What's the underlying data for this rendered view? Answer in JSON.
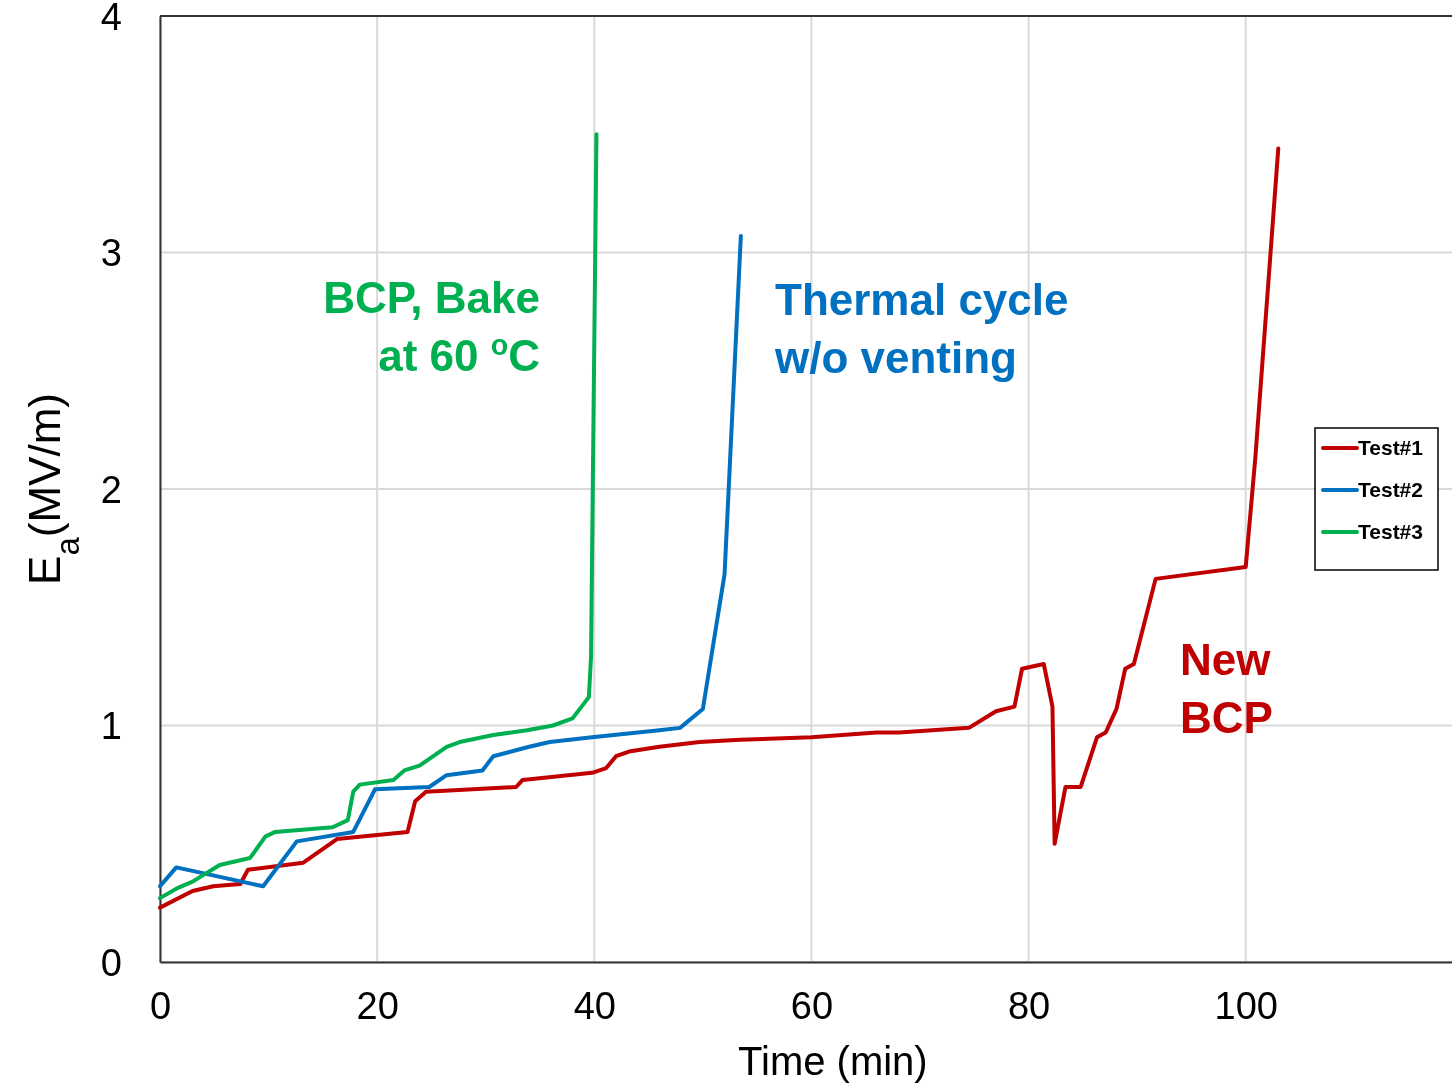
{
  "chart_data": {
    "type": "line",
    "xlabel": "Time (min)",
    "ylabel": "E$_{a}$(MV/m)",
    "xlim": [
      0,
      119
    ],
    "xticks": [
      0,
      20,
      40,
      60,
      80,
      100
    ],
    "ylim": [
      0,
      4
    ],
    "yticks": [
      0,
      1,
      2,
      3,
      4
    ],
    "grid": true,
    "legend": "right",
    "line_style": "solid",
    "marker": "none",
    "series": [
      {
        "name": "Test#1",
        "color": "#c00000",
        "x": [
          0,
          3.0,
          4.9,
          7.4,
          8.1,
          13.2,
          16.3,
          22.8,
          23.5,
          24.5,
          32.8,
          33.4,
          39.8,
          41.1,
          42.0,
          43.2,
          46.0,
          49.7,
          53.4,
          60,
          66,
          68.1,
          74.5,
          77.0,
          78.7,
          79.4,
          81.4,
          82.2,
          82.4,
          83.4,
          84.8,
          86.3,
          87.1,
          88.1,
          88.9,
          89.7,
          91.7,
          100,
          100.9,
          103.0
        ],
        "values": [
          0.23,
          0.3,
          0.32,
          0.33,
          0.39,
          0.42,
          0.52,
          0.55,
          0.68,
          0.72,
          0.74,
          0.77,
          0.8,
          0.82,
          0.87,
          0.89,
          0.91,
          0.93,
          0.94,
          0.95,
          0.97,
          0.97,
          0.99,
          1.06,
          1.08,
          1.24,
          1.26,
          1.08,
          0.5,
          0.74,
          0.74,
          0.95,
          0.97,
          1.07,
          1.24,
          1.26,
          1.62,
          1.67,
          2.14,
          3.44
        ]
      },
      {
        "name": "Test#2",
        "color": "#0070c0",
        "x": [
          0,
          1.5,
          9.5,
          12.6,
          17.8,
          19.8,
          24.8,
          26.4,
          29.7,
          30.7,
          34.0,
          35.9,
          39.8,
          46.0,
          47.9,
          50.0,
          52.0,
          53.5
        ],
        "values": [
          0.32,
          0.4,
          0.32,
          0.51,
          0.55,
          0.73,
          0.74,
          0.79,
          0.81,
          0.87,
          0.91,
          0.93,
          0.95,
          0.98,
          0.99,
          1.07,
          1.64,
          3.07
        ]
      },
      {
        "name": "Test#3",
        "color": "#00b050",
        "x": [
          0,
          1.5,
          3.0,
          5.5,
          8.3,
          9.7,
          10.6,
          15.9,
          17.3,
          17.8,
          18.4,
          21.5,
          22.5,
          23.9,
          26.4,
          27.6,
          30.7,
          33.8,
          36.2,
          38.0,
          39.5,
          39.7,
          40.2
        ],
        "values": [
          0.27,
          0.31,
          0.34,
          0.41,
          0.44,
          0.53,
          0.55,
          0.57,
          0.6,
          0.72,
          0.75,
          0.77,
          0.81,
          0.83,
          0.91,
          0.93,
          0.96,
          0.98,
          1.0,
          1.03,
          1.12,
          1.29,
          3.5
        ]
      }
    ],
    "annotations": [
      "New\nBCP",
      "Thermal cycle\nw/o venting",
      "BCP, Bake\nat 60 $^{o}$C"
    ]
  }
}
